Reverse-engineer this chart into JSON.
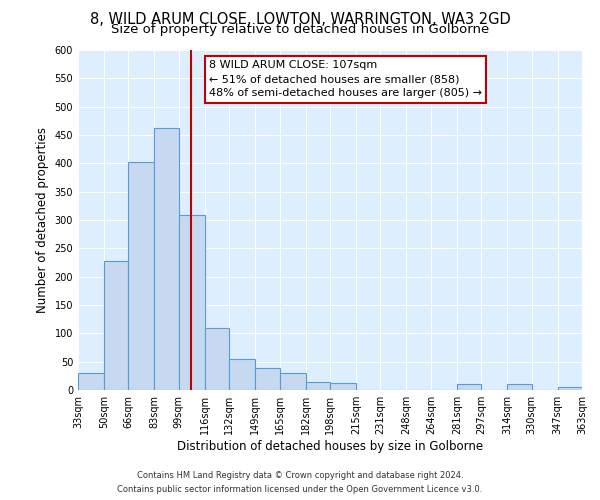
{
  "title": "8, WILD ARUM CLOSE, LOWTON, WARRINGTON, WA3 2GD",
  "subtitle": "Size of property relative to detached houses in Golborne",
  "xlabel": "Distribution of detached houses by size in Golborne",
  "ylabel": "Number of detached properties",
  "bar_edges": [
    33,
    50,
    66,
    83,
    99,
    116,
    132,
    149,
    165,
    182,
    198,
    215,
    231,
    248,
    264,
    281,
    297,
    314,
    330,
    347,
    363
  ],
  "bar_heights": [
    30,
    228,
    402,
    463,
    308,
    110,
    55,
    38,
    30,
    15,
    12,
    0,
    0,
    0,
    0,
    10,
    0,
    10,
    0,
    5
  ],
  "bar_color": "#c6d9f0",
  "bar_edge_color": "#5b9bd5",
  "reference_line_x": 107,
  "reference_line_color": "#c00000",
  "annotation_line1": "8 WILD ARUM CLOSE: 107sqm",
  "annotation_line2": "← 51% of detached houses are smaller (858)",
  "annotation_line3": "48% of semi-detached houses are larger (805) →",
  "annotation_box_color": "#ffffff",
  "annotation_box_edge_color": "#c00000",
  "ylim": [
    0,
    600
  ],
  "yticks": [
    0,
    50,
    100,
    150,
    200,
    250,
    300,
    350,
    400,
    450,
    500,
    550,
    600
  ],
  "background_color": "#ddeeff",
  "fig_background_color": "#ffffff",
  "footer_line1": "Contains HM Land Registry data © Crown copyright and database right 2024.",
  "footer_line2": "Contains public sector information licensed under the Open Government Licence v3.0.",
  "title_fontsize": 10.5,
  "subtitle_fontsize": 9.5,
  "axis_label_fontsize": 8.5,
  "tick_label_fontsize": 7,
  "annotation_fontsize": 8,
  "footer_fontsize": 6
}
